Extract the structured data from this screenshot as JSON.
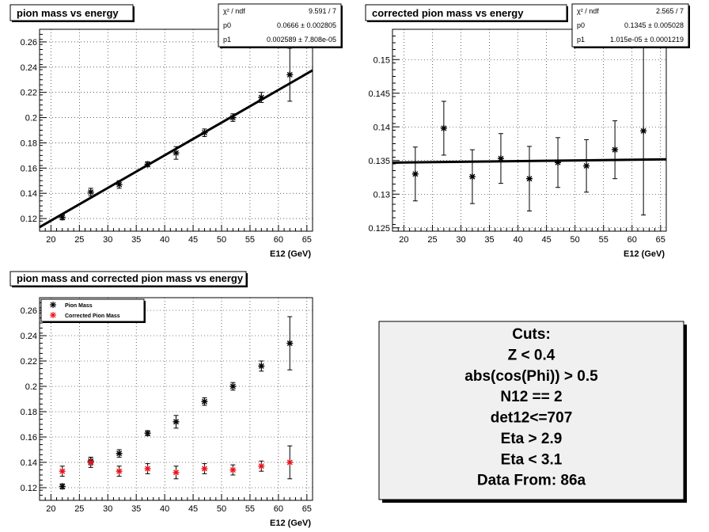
{
  "chart_data": [
    {
      "id": "p1",
      "type": "scatter",
      "title": "pion mass vs energy",
      "xlabel": "E12 (GeV)",
      "ylabel": "",
      "xlim": [
        18,
        66
      ],
      "ylim": [
        0.11,
        0.27
      ],
      "xticks": [
        20,
        25,
        30,
        35,
        40,
        45,
        50,
        55,
        60,
        65
      ],
      "yticks": [
        0.12,
        0.14,
        0.16,
        0.18,
        0.2,
        0.22,
        0.24,
        0.26
      ],
      "grid": true,
      "series": [
        {
          "color": "#000000",
          "marker": "asterisk",
          "x": [
            22,
            27,
            32,
            37,
            42,
            47,
            52,
            57,
            62
          ],
          "y": [
            0.121,
            0.141,
            0.147,
            0.163,
            0.172,
            0.188,
            0.2,
            0.216,
            0.234
          ],
          "err": [
            0.002,
            0.003,
            0.003,
            0.002,
            0.005,
            0.003,
            0.003,
            0.004,
            0.021
          ]
        }
      ],
      "fit": {
        "p0": 0.0666,
        "p1": 0.002589
      },
      "stats": [
        {
          "label": "χ² / ndf",
          "value": "9.591 / 7"
        },
        {
          "label": "p0",
          "value": "0.0666 ± 0.002805"
        },
        {
          "label": "p1",
          "value": "0.002589 ± 7.808e-05"
        }
      ]
    },
    {
      "id": "p2",
      "type": "scatter",
      "title": "corrected pion mass vs energy",
      "xlabel": "E12 (GeV)",
      "ylabel": "",
      "xlim": [
        18,
        66
      ],
      "ylim": [
        0.1245,
        0.1545
      ],
      "xticks": [
        20,
        25,
        30,
        35,
        40,
        45,
        50,
        55,
        60,
        65
      ],
      "yticks": [
        0.125,
        0.13,
        0.135,
        0.14,
        0.145,
        0.15
      ],
      "grid": true,
      "series": [
        {
          "color": "#000000",
          "marker": "asterisk",
          "x": [
            22,
            27,
            32,
            37,
            42,
            47,
            52,
            57,
            62
          ],
          "y": [
            0.133,
            0.1398,
            0.1326,
            0.1353,
            0.1323,
            0.1347,
            0.1342,
            0.1366,
            0.1394
          ],
          "err": [
            0.004,
            0.004,
            0.004,
            0.0037,
            0.0048,
            0.0037,
            0.0039,
            0.0043,
            0.0125
          ]
        }
      ],
      "fit": {
        "p0": 0.1345,
        "p1": 1.015e-05
      },
      "stats": [
        {
          "label": "χ² / ndf",
          "value": "2.565 / 7"
        },
        {
          "label": "p0",
          "value": "0.1345 ± 0.005028"
        },
        {
          "label": "p1",
          "value": "1.015e-05 ± 0.0001219"
        }
      ]
    },
    {
      "id": "p3",
      "type": "scatter",
      "title": "pion mass and corrected pion mass vs energy",
      "xlabel": "E12 (GeV)",
      "ylabel": "",
      "xlim": [
        18,
        66
      ],
      "ylim": [
        0.11,
        0.27
      ],
      "xticks": [
        20,
        25,
        30,
        35,
        40,
        45,
        50,
        55,
        60,
        65
      ],
      "yticks": [
        0.12,
        0.14,
        0.16,
        0.18,
        0.2,
        0.22,
        0.24,
        0.26
      ],
      "grid": true,
      "legend": "top-left",
      "series": [
        {
          "name": "Pion Mass",
          "color": "#000000",
          "marker": "asterisk",
          "x": [
            22,
            27,
            32,
            37,
            42,
            47,
            52,
            57,
            62
          ],
          "y": [
            0.121,
            0.141,
            0.147,
            0.163,
            0.172,
            0.188,
            0.2,
            0.216,
            0.234
          ],
          "err": [
            0.002,
            0.003,
            0.003,
            0.002,
            0.005,
            0.003,
            0.003,
            0.004,
            0.021
          ]
        },
        {
          "name": "Corrected Pion Mass",
          "color": "#e8141c",
          "marker": "asterisk",
          "x": [
            22,
            27,
            32,
            37,
            42,
            47,
            52,
            57,
            62
          ],
          "y": [
            0.133,
            0.14,
            0.133,
            0.135,
            0.132,
            0.135,
            0.134,
            0.137,
            0.14
          ],
          "err": [
            0.004,
            0.004,
            0.004,
            0.004,
            0.005,
            0.004,
            0.004,
            0.004,
            0.013
          ]
        }
      ]
    }
  ],
  "cuts": {
    "lines": [
      "Cuts:",
      "Z < 0.4",
      "abs(cos(Phi)) > 0.5",
      "N12 == 2",
      "det12<=707",
      "Eta > 2.9",
      "Eta < 3.1",
      "Data From: 86a"
    ]
  }
}
